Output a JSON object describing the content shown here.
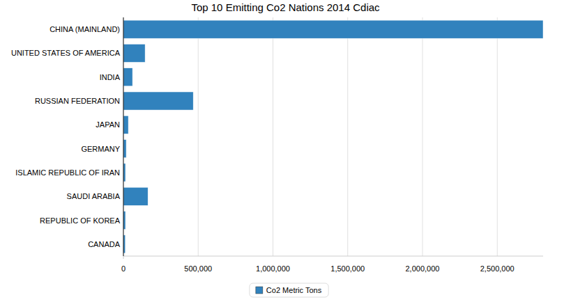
{
  "chart_data": {
    "type": "bar",
    "orientation": "horizontal",
    "title": "Top 10 Emitting Co2 Nations 2014 Cdiac",
    "categories": [
      "CHINA (MAINLAND)",
      "UNITED STATES OF AMERICA",
      "INDIA",
      "RUSSIAN FEDERATION",
      "JAPAN",
      "GERMANY",
      "ISLAMIC REPUBLIC OF IRAN",
      "SAUDI ARABIA",
      "REPUBLIC OF KOREA",
      "CANADA"
    ],
    "series": [
      {
        "name": "Co2 Metric Tons",
        "color": "#3182bd",
        "values": [
          2806634,
          145000,
          61000,
          467000,
          33000,
          19000,
          14000,
          164000,
          14000,
          13000
        ]
      }
    ],
    "xlim": [
      0,
      2806634
    ],
    "xticks": [
      0,
      {
        "value": 500000,
        "label": "500,000"
      },
      {
        "value": 1000000,
        "label": "1,000,000"
      },
      {
        "value": 1500000,
        "label": "1,500,000"
      },
      {
        "value": 2000000,
        "label": "2,000,000"
      },
      {
        "value": 2500000,
        "label": "2,500,000"
      }
    ],
    "grid": true,
    "legend": "bottom"
  }
}
